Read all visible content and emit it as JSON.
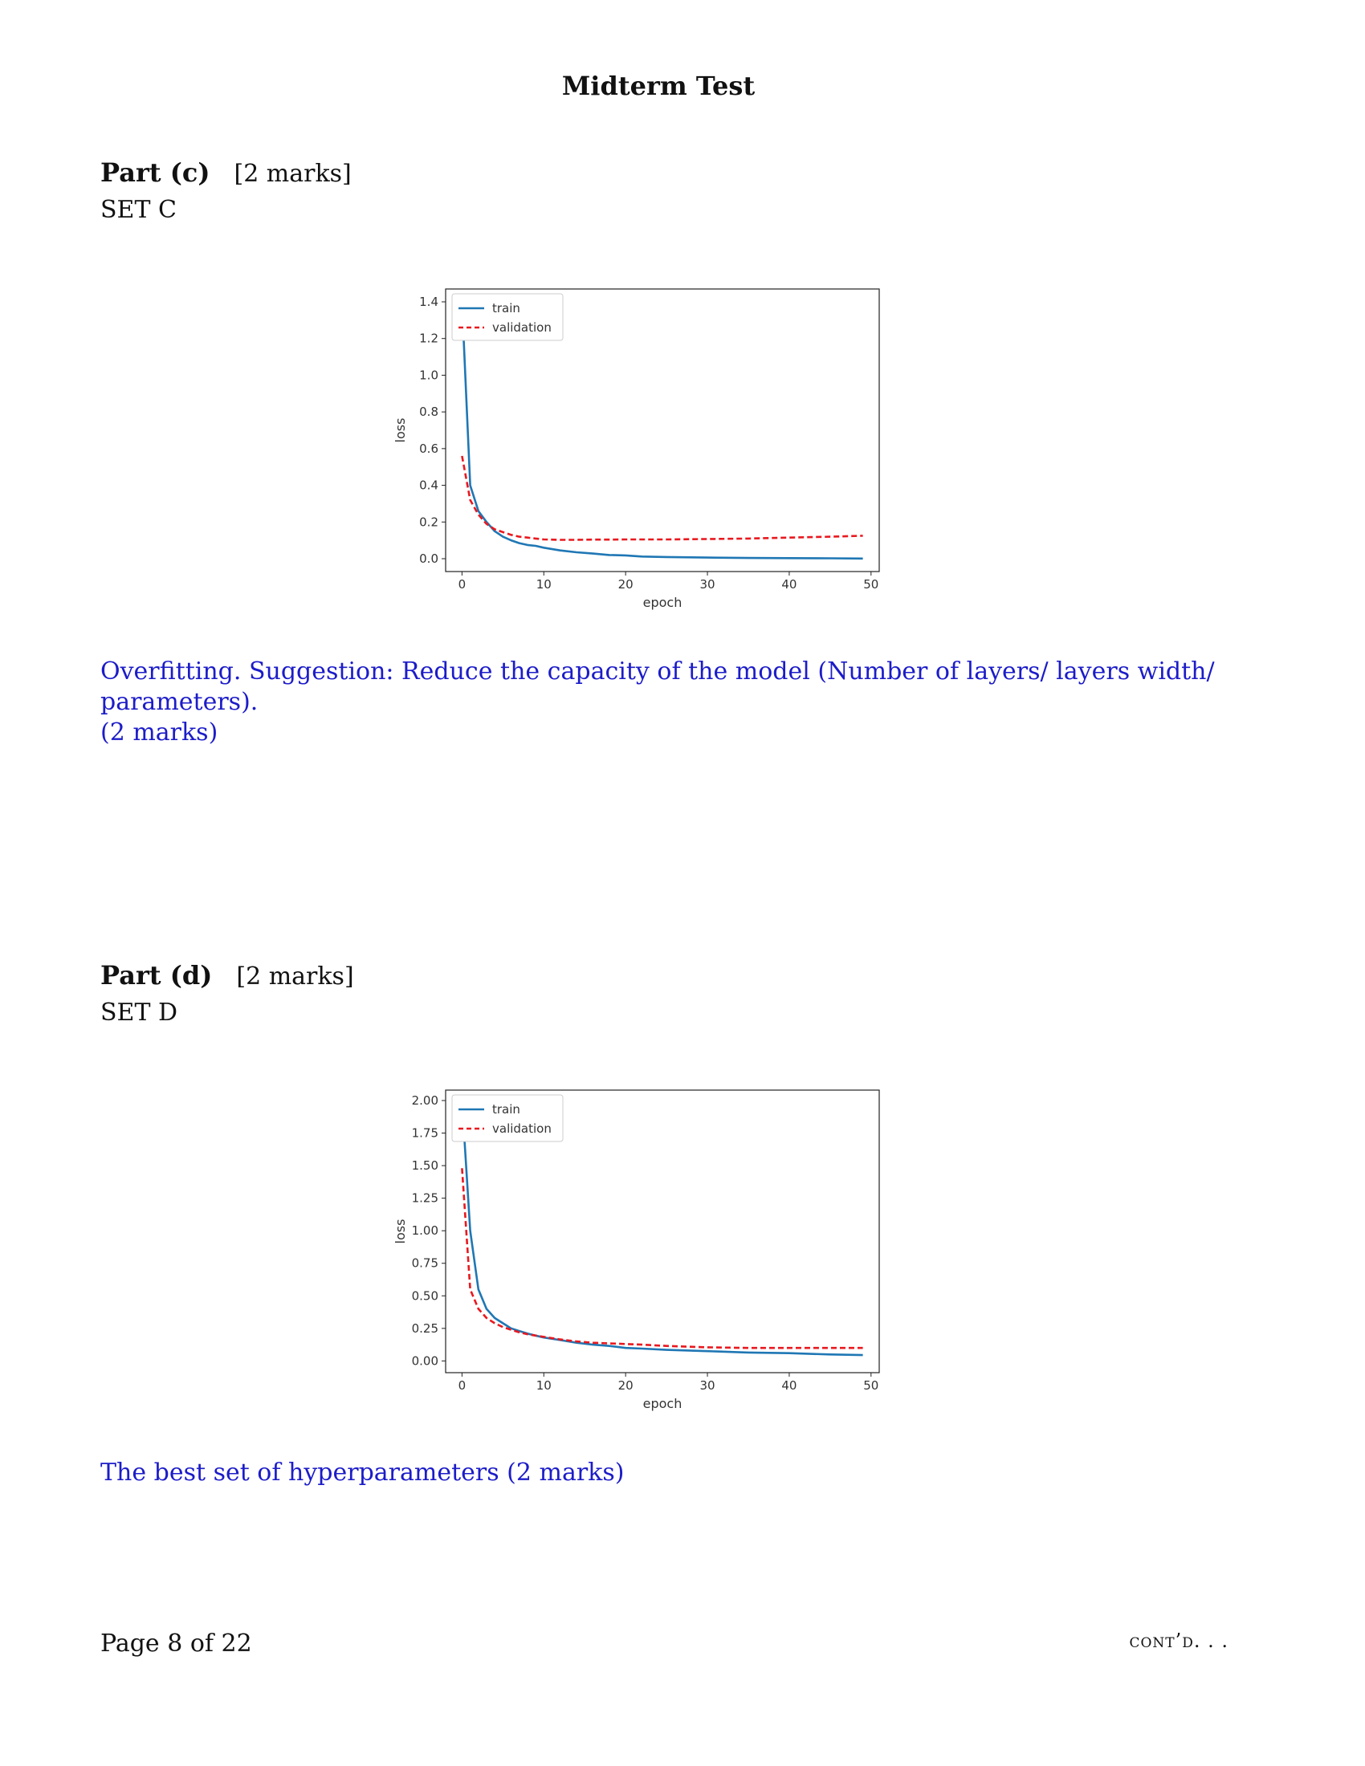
{
  "header": {
    "title": "Midterm Test"
  },
  "part_c": {
    "label": "Part (c)",
    "marks": "[2 marks]",
    "set": "SET C",
    "answer_line1": "Overfitting. Suggestion: Reduce the capacity of the model (Number of layers/ layers width/ parameters).",
    "answer_line2": "(2 marks)"
  },
  "part_d": {
    "label": "Part (d)",
    "marks": "[2 marks]",
    "set": "SET D",
    "answer_line1": "The best set of hyperparameters (2 marks)"
  },
  "footer": {
    "page": "Page 8 of 22",
    "cont": "cont’d. . ."
  },
  "chart_data": [
    {
      "type": "line",
      "title": "",
      "xlabel": "epoch",
      "ylabel": "loss",
      "xlim": [
        -2,
        51
      ],
      "ylim": [
        -0.07,
        1.47
      ],
      "xticks": [
        0,
        10,
        20,
        30,
        40,
        50
      ],
      "yticks": [
        0.0,
        0.2,
        0.4,
        0.6,
        0.8,
        1.0,
        1.2,
        1.4
      ],
      "ytick_format": 1,
      "legend_position": "upper-left",
      "x": [
        0,
        1,
        2,
        3,
        4,
        5,
        6,
        7,
        8,
        9,
        10,
        12,
        14,
        16,
        18,
        20,
        22,
        25,
        30,
        35,
        40,
        45,
        49
      ],
      "series": [
        {
          "name": "train",
          "color": "#1f77b4",
          "dash": "solid",
          "values": [
            1.4,
            0.4,
            0.26,
            0.2,
            0.15,
            0.12,
            0.1,
            0.085,
            0.075,
            0.07,
            0.06,
            0.045,
            0.035,
            0.028,
            0.02,
            0.018,
            0.012,
            0.009,
            0.006,
            0.004,
            0.003,
            0.002,
            0.001
          ]
        },
        {
          "name": "validation",
          "color": "#e8191f",
          "dash": "dashed",
          "values": [
            0.56,
            0.32,
            0.24,
            0.19,
            0.16,
            0.145,
            0.13,
            0.12,
            0.115,
            0.11,
            0.105,
            0.103,
            0.103,
            0.104,
            0.104,
            0.105,
            0.105,
            0.105,
            0.107,
            0.11,
            0.115,
            0.12,
            0.125
          ]
        }
      ]
    },
    {
      "type": "line",
      "title": "",
      "xlabel": "epoch",
      "ylabel": "loss",
      "xlim": [
        -2,
        51
      ],
      "ylim": [
        -0.09,
        2.08
      ],
      "xticks": [
        0,
        10,
        20,
        30,
        40,
        50
      ],
      "yticks": [
        0.0,
        0.25,
        0.5,
        0.75,
        1.0,
        1.25,
        1.5,
        1.75,
        2.0
      ],
      "ytick_format": 2,
      "legend_position": "upper-left",
      "x": [
        0,
        1,
        2,
        3,
        4,
        5,
        6,
        7,
        8,
        9,
        10,
        12,
        14,
        16,
        18,
        20,
        22,
        25,
        30,
        35,
        40,
        45,
        49
      ],
      "series": [
        {
          "name": "train",
          "color": "#1f77b4",
          "dash": "solid",
          "values": [
            2.0,
            1.0,
            0.55,
            0.4,
            0.33,
            0.29,
            0.25,
            0.23,
            0.21,
            0.195,
            0.18,
            0.16,
            0.14,
            0.125,
            0.115,
            0.1,
            0.095,
            0.085,
            0.075,
            0.065,
            0.06,
            0.05,
            0.045
          ]
        },
        {
          "name": "validation",
          "color": "#e8191f",
          "dash": "dashed",
          "values": [
            1.48,
            0.55,
            0.4,
            0.33,
            0.29,
            0.26,
            0.24,
            0.22,
            0.205,
            0.195,
            0.185,
            0.165,
            0.15,
            0.14,
            0.135,
            0.13,
            0.125,
            0.115,
            0.105,
            0.1,
            0.1,
            0.1,
            0.1
          ]
        }
      ]
    }
  ]
}
